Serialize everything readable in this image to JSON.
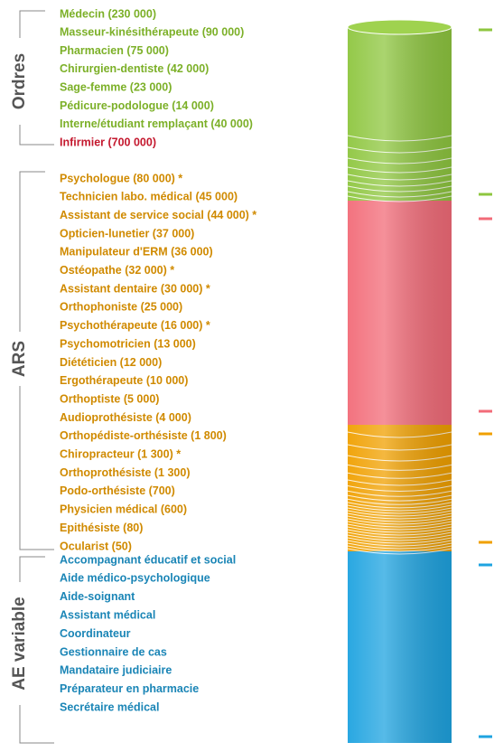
{
  "groups": [
    {
      "label": "Ordres",
      "color": "#7cb028",
      "items": [
        {
          "text": "Médecin (230 000)"
        },
        {
          "text": "Masseur-kinésithérapeute (90 000)"
        },
        {
          "text": "Pharmacien (75 000)"
        },
        {
          "text": "Chirurgien-dentiste (42 000)"
        },
        {
          "text": "Sage-femme (23 000)"
        },
        {
          "text": "Pédicure-podologue (14 000)"
        },
        {
          "text": "Interne/étudiant remplaçant (40 000)"
        },
        {
          "text": "Infirmier (700 000)",
          "color": "#c4182e"
        }
      ]
    },
    {
      "label": "ARS",
      "color": "#d08a00",
      "items": [
        {
          "text": "Psychologue (80 000) *"
        },
        {
          "text": "Technicien labo. médical (45 000)"
        },
        {
          "text": "Assistant de service social (44 000) *"
        },
        {
          "text": "Opticien-lunetier (37 000)"
        },
        {
          "text": "Manipulateur d'ERM (36 000)"
        },
        {
          "text": "Ostéopathe (32 000) *"
        },
        {
          "text": "Assistant dentaire (30 000) *"
        },
        {
          "text": "Orthophoniste (25 000)"
        },
        {
          "text": "Psychothérapeute (16 000) *"
        },
        {
          "text": "Psychomotricien (13 000)"
        },
        {
          "text": "Diététicien (12 000)"
        },
        {
          "text": "Ergothérapeute (10 000)"
        },
        {
          "text": "Orthoptiste (5 000)"
        },
        {
          "text": "Audioprothésiste (4 000)"
        },
        {
          "text": "Orthopédiste-orthésiste (1 800)"
        },
        {
          "text": "Chiropracteur (1 300) *"
        },
        {
          "text": "Orthoprothésiste (1 300)"
        },
        {
          "text": "Podo-orthésiste (700)"
        },
        {
          "text": "Physicien médical (600)"
        },
        {
          "text": "Epithésiste (80)"
        },
        {
          "text": "Ocularist (50)"
        }
      ]
    },
    {
      "label": "AE variable",
      "color": "#1a85b6",
      "items": [
        {
          "text": "Accompagnant éducatif et social"
        },
        {
          "text": "Aide médico-psychologique"
        },
        {
          "text": "Aide-soignant"
        },
        {
          "text": "Assistant médical"
        },
        {
          "text": "Coordinateur"
        },
        {
          "text": "Gestionnaire de cas"
        },
        {
          "text": "Mandataire judiciaire"
        },
        {
          "text": "Préparateur en pharmacie"
        },
        {
          "text": "Secrétaire médical"
        }
      ]
    }
  ]
}
